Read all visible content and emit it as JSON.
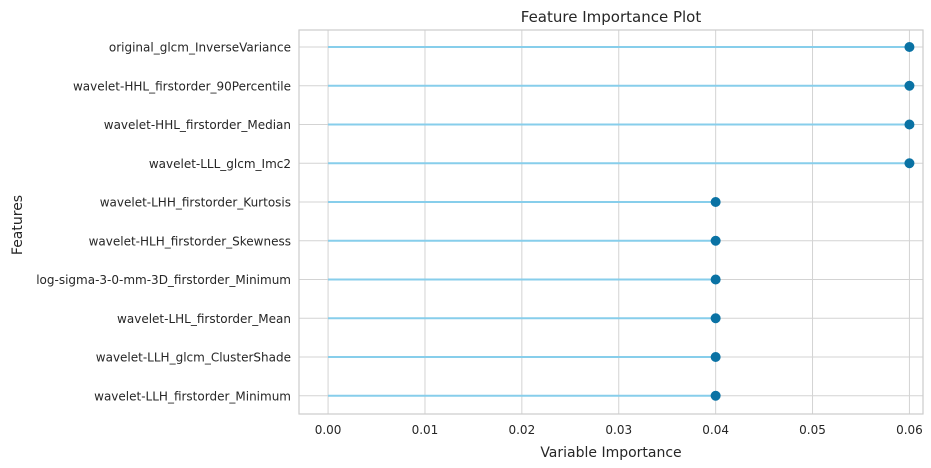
{
  "chart_data": {
    "type": "lollipop",
    "title": "Feature Importance Plot",
    "xlabel": "Variable Importance",
    "ylabel": "Features",
    "xlim": [
      -0.003,
      0.0614
    ],
    "xticks": [
      0.0,
      0.01,
      0.02,
      0.03,
      0.04,
      0.05,
      0.06
    ],
    "xtick_labels": [
      "0.00",
      "0.01",
      "0.02",
      "0.03",
      "0.04",
      "0.05",
      "0.06"
    ],
    "grid": true,
    "categories": [
      "original_glcm_InverseVariance",
      "wavelet-HHL_firstorder_90Percentile",
      "wavelet-HHL_firstorder_Median",
      "wavelet-LLL_glcm_Imc2",
      "wavelet-LHH_firstorder_Kurtosis",
      "wavelet-HLH_firstorder_Skewness",
      "log-sigma-3-0-mm-3D_firstorder_Minimum",
      "wavelet-LHL_firstorder_Mean",
      "wavelet-LLH_glcm_ClusterShade",
      "wavelet-LLH_firstorder_Minimum"
    ],
    "values": [
      0.06,
      0.06,
      0.06,
      0.06,
      0.04,
      0.04,
      0.04,
      0.04,
      0.04,
      0.04
    ],
    "colors": {
      "stem": "#87ceeb",
      "marker": "#0a72a4",
      "grid": "#d3d3d3",
      "axes": "#cccccc",
      "text": "#262626"
    }
  }
}
